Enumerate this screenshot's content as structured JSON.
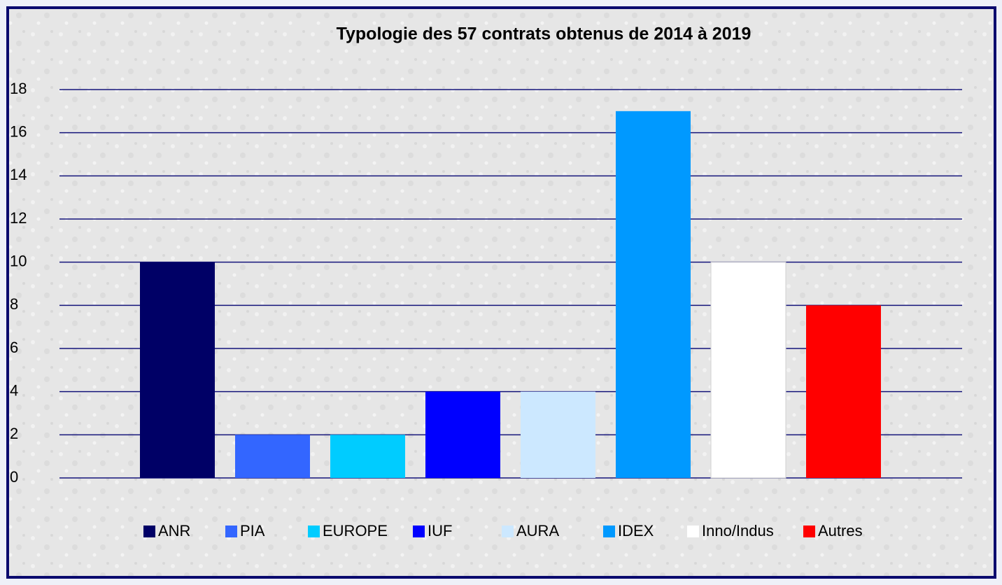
{
  "chart_data": {
    "type": "bar",
    "title": "Typologie des 57 contrats obtenus de 2014 à 2019",
    "categories": [
      null
    ],
    "series": [
      {
        "name": "ANR",
        "color": "#000066",
        "values": [
          10
        ]
      },
      {
        "name": "PIA",
        "color": "#3366ff",
        "values": [
          2
        ]
      },
      {
        "name": "EUROPE",
        "color": "#00ccff",
        "values": [
          2
        ]
      },
      {
        "name": "IUF",
        "color": "#0000ff",
        "values": [
          4
        ]
      },
      {
        "name": "AURA",
        "color": "#cce8ff",
        "values": [
          4
        ]
      },
      {
        "name": "IDEX",
        "color": "#0099ff",
        "values": [
          17
        ]
      },
      {
        "name": "Inno/Indus",
        "color": "#ffffff",
        "values": [
          10
        ]
      },
      {
        "name": "Autres",
        "color": "#ff0000",
        "values": [
          8
        ]
      }
    ],
    "ylim": [
      0,
      18
    ],
    "yticks": [
      0,
      2,
      4,
      6,
      8,
      10,
      12,
      14,
      16,
      18
    ],
    "grid": true,
    "legend": "bottom"
  }
}
